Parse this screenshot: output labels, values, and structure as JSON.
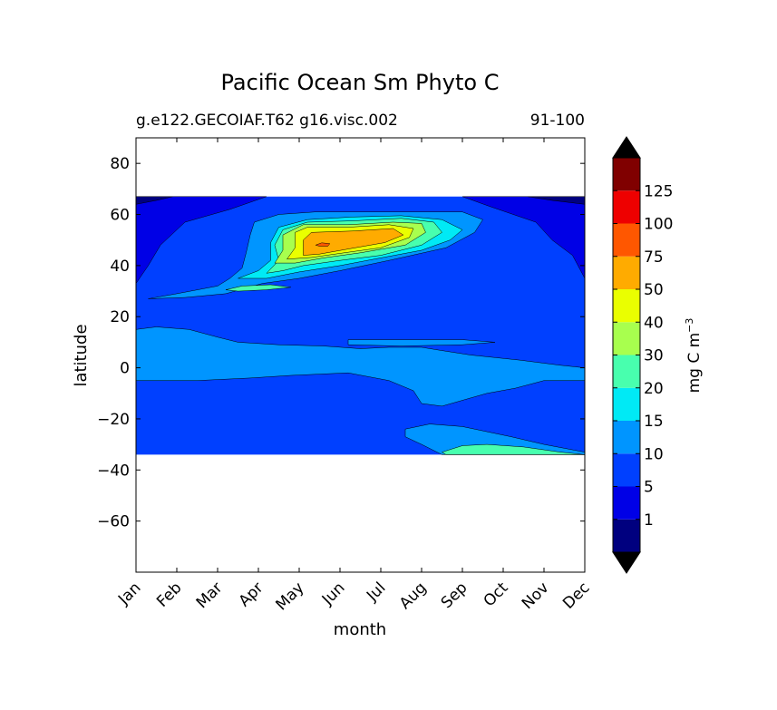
{
  "chart_data": {
    "type": "heatmap",
    "title": "Pacific Ocean Sm Phyto C",
    "subtitle_left": "g.e122.GECOIAF.T62 g16.visc.002",
    "subtitle_right": "91-100",
    "xlabel": "month",
    "ylabel": "latitude",
    "x_categories": [
      "Jan",
      "Feb",
      "Mar",
      "Apr",
      "May",
      "Jun",
      "Jul",
      "Aug",
      "Sep",
      "Oct",
      "Nov",
      "Dec"
    ],
    "y_ticks": [
      80,
      60,
      40,
      20,
      0,
      -20,
      -40,
      -60
    ],
    "y_tick_labels": [
      "80",
      "60",
      "40",
      "20",
      "0",
      "−20",
      "−40",
      "−60"
    ],
    "ylim": [
      -80,
      90
    ],
    "data_lat_range": [
      -34,
      67
    ],
    "colorbar": {
      "label": "mg C m",
      "label_exponent": "−3",
      "levels": [
        1,
        5,
        10,
        15,
        20,
        30,
        40,
        50,
        75,
        100,
        125
      ],
      "tick_labels": [
        "1",
        "5",
        "10",
        "15",
        "20",
        "30",
        "40",
        "50",
        "75",
        "100",
        "125"
      ],
      "colors": [
        "#00007f",
        "#0000e6",
        "#0040ff",
        "#0095ff",
        "#00eaf5",
        "#48ffae",
        "#a8ff4e",
        "#eaff00",
        "#ffab00",
        "#ff5700",
        "#ee0000",
        "#800000"
      ],
      "extend": "both"
    },
    "contours": [
      {
        "level_index": 2,
        "min_value": 5,
        "region": "main subtropical/temperate band, Jan-Dec, -34 to 67"
      },
      {
        "level_index": 1,
        "min_value": 1,
        "region": "high-latitude North Pacific, Jan-Mar and Oct-Dec"
      },
      {
        "level_index": 0,
        "min_value": 0,
        "region": "near 65N edges"
      },
      {
        "level_index": 3,
        "min_value": 10,
        "region": "equatorial band and NH bloom halo"
      },
      {
        "level_index": 4,
        "min_value": 15,
        "region": "North Pacific spring bloom 42-60N"
      },
      {
        "level_index": 5,
        "min_value": 20,
        "region": "bloom ring and South Pacific Aug-Oct"
      },
      {
        "level_index": 6,
        "min_value": 30,
        "region": "bloom ring"
      },
      {
        "level_index": 7,
        "min_value": 40,
        "region": "bloom ring"
      },
      {
        "level_index": 8,
        "min_value": 50,
        "region": "bloom core May-Jul 47-55N"
      },
      {
        "level_index": 9,
        "min_value": 75,
        "region": "peak mid-May ~48N"
      }
    ]
  }
}
